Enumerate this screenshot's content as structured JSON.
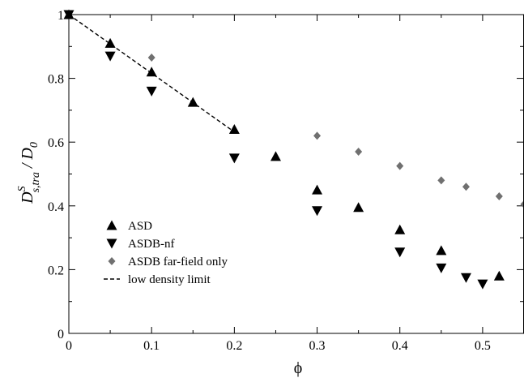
{
  "chart_data": {
    "type": "scatter",
    "title": "",
    "xlabel": "ϕ",
    "ylabel": {
      "main": "D",
      "superscript": "S",
      "subscript": "s,tra",
      "divider": " / D",
      "divider_subscript": "0"
    },
    "xlim": [
      0,
      0.55
    ],
    "ylim": [
      0,
      1.0
    ],
    "xticks": [
      {
        "value": 0,
        "label": "0"
      },
      {
        "value": 0.1,
        "label": "0.1"
      },
      {
        "value": 0.2,
        "label": "0.2"
      },
      {
        "value": 0.3,
        "label": "0.3"
      },
      {
        "value": 0.4,
        "label": "0.4"
      },
      {
        "value": 0.5,
        "label": "0.5"
      }
    ],
    "yticks": [
      {
        "value": 0,
        "label": "0"
      },
      {
        "value": 0.2,
        "label": "0.2"
      },
      {
        "value": 0.4,
        "label": "0.4"
      },
      {
        "value": 0.6,
        "label": "0.6"
      },
      {
        "value": 0.8,
        "label": "0.8"
      },
      {
        "value": 1.0,
        "label": "1"
      }
    ],
    "grid": false,
    "legend_position": "bottom-left",
    "series": [
      {
        "name": "ASD",
        "marker": "triangle-up",
        "color": "#000000",
        "points": [
          {
            "x": 0,
            "y": 1.0
          },
          {
            "x": 0.05,
            "y": 0.91
          },
          {
            "x": 0.1,
            "y": 0.82
          },
          {
            "x": 0.15,
            "y": 0.725
          },
          {
            "x": 0.2,
            "y": 0.64
          },
          {
            "x": 0.25,
            "y": 0.555
          },
          {
            "x": 0.3,
            "y": 0.45
          },
          {
            "x": 0.35,
            "y": 0.395
          },
          {
            "x": 0.4,
            "y": 0.325
          },
          {
            "x": 0.45,
            "y": 0.26
          },
          {
            "x": 0.52,
            "y": 0.18
          }
        ]
      },
      {
        "name": "ASDB-nf",
        "marker": "triangle-down",
        "color": "#000000",
        "points": [
          {
            "x": 0,
            "y": 1.0
          },
          {
            "x": 0.05,
            "y": 0.87
          },
          {
            "x": 0.1,
            "y": 0.76
          },
          {
            "x": 0.2,
            "y": 0.55
          },
          {
            "x": 0.3,
            "y": 0.385
          },
          {
            "x": 0.4,
            "y": 0.255
          },
          {
            "x": 0.45,
            "y": 0.205
          },
          {
            "x": 0.48,
            "y": 0.175
          },
          {
            "x": 0.5,
            "y": 0.155
          }
        ]
      },
      {
        "name": "ASDB far-field only",
        "marker": "diamond",
        "color": "#707070",
        "points": [
          {
            "x": 0.1,
            "y": 0.865
          },
          {
            "x": 0.3,
            "y": 0.62
          },
          {
            "x": 0.35,
            "y": 0.57
          },
          {
            "x": 0.4,
            "y": 0.525
          },
          {
            "x": 0.45,
            "y": 0.48
          },
          {
            "x": 0.48,
            "y": 0.46
          },
          {
            "x": 0.52,
            "y": 0.43
          },
          {
            "x": 0.55,
            "y": 0.405
          }
        ]
      },
      {
        "name": "low density limit",
        "marker": "dashed-line",
        "color": "#000000",
        "points": [
          {
            "x": 0,
            "y": 1.0
          },
          {
            "x": 0.2,
            "y": 0.632
          }
        ]
      }
    ]
  }
}
